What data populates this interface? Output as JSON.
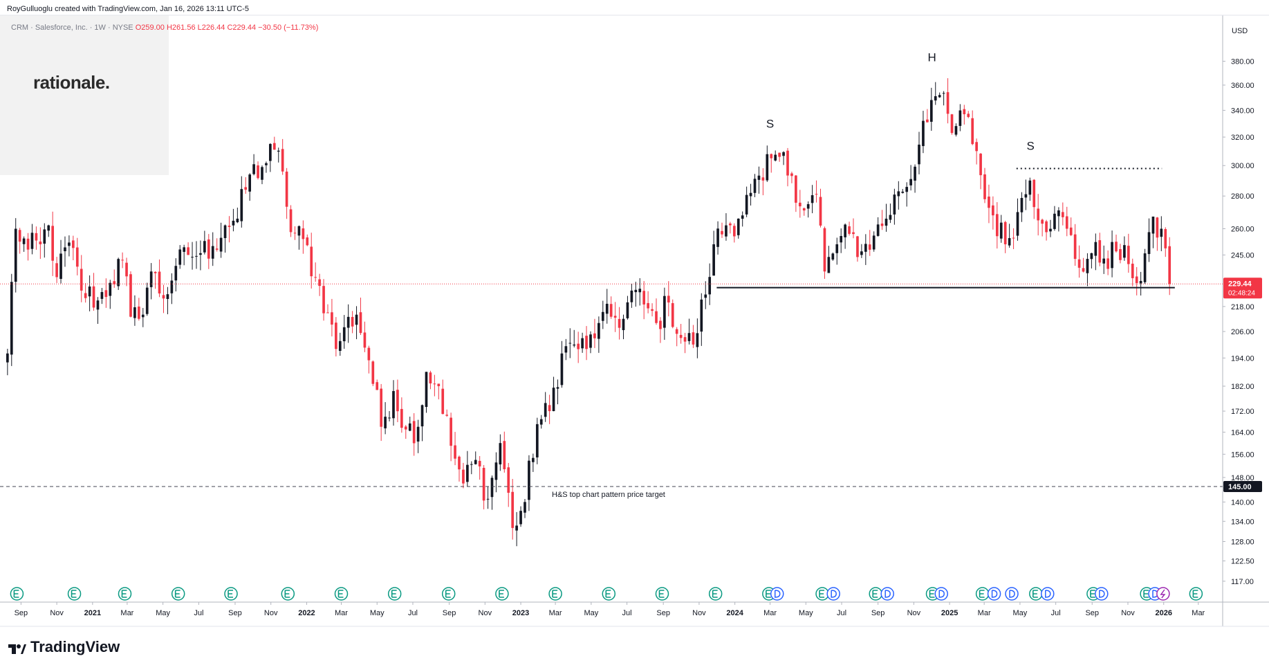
{
  "header": {
    "created_text": "RoyGulluoglu created with TradingView.com, Jan 16, 2026 13:11 UTC-5"
  },
  "symbol_line": {
    "name": "CRM · Salesforce, Inc. · 1W · NYSE",
    "open": "O259.00",
    "high": "H261.56",
    "low": "L226.44",
    "close": "C229.44",
    "change": "−30.50 (−11.73%)"
  },
  "logo": {
    "text": "rationale."
  },
  "footer": {
    "brand": "TradingView"
  },
  "colors": {
    "up": "#131722",
    "down": "#f23645",
    "last_price": "#f23645",
    "grid": "#f0f3fa",
    "axis_text": "#131722"
  },
  "chart_data": {
    "type": "candlestick",
    "title": "CRM · Salesforce, Inc. · 1W · NYSE",
    "currency": "USD",
    "y_scale": "log",
    "ylim": [
      113,
      410
    ],
    "y_ticks": [
      117,
      122.5,
      128,
      134,
      140,
      148,
      156,
      164,
      172,
      182,
      194,
      206,
      218,
      245,
      260,
      280,
      300,
      320,
      340,
      360,
      380
    ],
    "x_ticks": [
      "Sep",
      "Nov",
      "2021",
      "Mar",
      "May",
      "Jul",
      "Sep",
      "Nov",
      "2022",
      "Mar",
      "May",
      "Jul",
      "Sep",
      "Nov",
      "2023",
      "Mar",
      "May",
      "Jul",
      "Sep",
      "Nov",
      "2024",
      "Mar",
      "May",
      "Jul",
      "Sep",
      "Nov",
      "2025",
      "Mar",
      "May",
      "Jul",
      "Sep",
      "Nov",
      "2026",
      "Mar"
    ],
    "x_tick_dates": [
      "2020-09-01",
      "2020-11-01",
      "2021-01-01",
      "2021-03-01",
      "2021-05-01",
      "2021-07-01",
      "2021-09-01",
      "2021-11-01",
      "2022-01-01",
      "2022-03-01",
      "2022-05-01",
      "2022-07-01",
      "2022-09-01",
      "2022-11-01",
      "2023-01-01",
      "2023-03-01",
      "2023-05-01",
      "2023-07-01",
      "2023-09-01",
      "2023-11-01",
      "2024-01-01",
      "2024-03-01",
      "2024-05-01",
      "2024-07-01",
      "2024-09-01",
      "2024-11-01",
      "2025-01-01",
      "2025-03-01",
      "2025-05-01",
      "2025-07-01",
      "2025-09-01",
      "2025-11-01",
      "2026-01-01",
      "2026-03-01"
    ],
    "x_range": [
      "2020-08-08",
      "2026-04-08"
    ],
    "last_price": {
      "value": 229.44,
      "label": "229.44",
      "countdown": "02:48:24"
    },
    "target_price": {
      "value": 145.0,
      "label": "145.00",
      "annotation": "H&S top chart pattern price target"
    },
    "neckline": {
      "value": 227.5,
      "from": "2023-12-01",
      "to": "2026-01-20"
    },
    "shoulder_line": {
      "value": 298,
      "from": "2025-04-25",
      "to": "2025-12-29"
    },
    "pattern_labels": [
      {
        "text": "S",
        "date": "2024-03-01",
        "value": 327
      },
      {
        "text": "H",
        "date": "2024-12-02",
        "value": 380
      },
      {
        "text": "S",
        "date": "2025-05-19",
        "value": 311
      }
    ],
    "anchor_closes": [
      [
        "2020-08-09",
        196
      ],
      [
        "2020-08-23",
        260
      ],
      [
        "2020-09-13",
        248
      ],
      [
        "2020-10-04",
        251
      ],
      [
        "2020-10-18",
        262
      ],
      [
        "2020-11-01",
        233
      ],
      [
        "2020-11-22",
        252
      ],
      [
        "2020-12-13",
        226
      ],
      [
        "2021-01-10",
        221
      ],
      [
        "2021-01-31",
        230
      ],
      [
        "2021-02-21",
        242
      ],
      [
        "2021-03-07",
        213
      ],
      [
        "2021-03-21",
        212
      ],
      [
        "2021-04-11",
        236
      ],
      [
        "2021-05-02",
        222
      ],
      [
        "2021-05-23",
        239
      ],
      [
        "2021-06-13",
        245
      ],
      [
        "2021-07-04",
        246
      ],
      [
        "2021-07-25",
        250
      ],
      [
        "2021-08-15",
        262
      ],
      [
        "2021-09-05",
        266
      ],
      [
        "2021-09-26",
        294
      ],
      [
        "2021-10-17",
        299
      ],
      [
        "2021-11-07",
        311
      ],
      [
        "2021-11-21",
        296
      ],
      [
        "2021-12-05",
        258
      ],
      [
        "2021-12-26",
        254
      ],
      [
        "2022-01-16",
        233
      ],
      [
        "2022-02-06",
        215
      ],
      [
        "2022-02-20",
        198
      ],
      [
        "2022-03-06",
        208
      ],
      [
        "2022-03-27",
        214
      ],
      [
        "2022-04-17",
        193
      ],
      [
        "2022-05-08",
        166
      ],
      [
        "2022-05-29",
        180
      ],
      [
        "2022-06-19",
        165
      ],
      [
        "2022-07-10",
        166
      ],
      [
        "2022-07-24",
        188
      ],
      [
        "2022-08-14",
        182
      ],
      [
        "2022-09-04",
        159
      ],
      [
        "2022-09-25",
        146
      ],
      [
        "2022-10-16",
        154
      ],
      [
        "2022-11-06",
        141
      ],
      [
        "2022-11-27",
        160
      ],
      [
        "2022-12-18",
        132
      ],
      [
        "2023-01-08",
        140
      ],
      [
        "2023-01-29",
        167
      ],
      [
        "2023-02-19",
        172
      ],
      [
        "2023-03-12",
        196
      ],
      [
        "2023-04-02",
        200
      ],
      [
        "2023-04-23",
        198
      ],
      [
        "2023-05-14",
        210
      ],
      [
        "2023-06-04",
        213
      ],
      [
        "2023-06-25",
        212
      ],
      [
        "2023-07-09",
        226
      ],
      [
        "2023-07-30",
        219
      ],
      [
        "2023-08-20",
        210
      ],
      [
        "2023-09-10",
        220
      ],
      [
        "2023-10-01",
        203
      ],
      [
        "2023-10-22",
        200
      ],
      [
        "2023-11-12",
        224
      ],
      [
        "2023-11-26",
        251
      ],
      [
        "2023-12-17",
        262
      ],
      [
        "2024-01-07",
        266
      ],
      [
        "2024-01-28",
        282
      ],
      [
        "2024-02-18",
        290
      ],
      [
        "2024-03-03",
        305
      ],
      [
        "2024-03-17",
        306
      ],
      [
        "2024-04-07",
        293
      ],
      [
        "2024-04-28",
        271
      ],
      [
        "2024-05-19",
        281
      ],
      [
        "2024-06-02",
        236
      ],
      [
        "2024-06-23",
        251
      ],
      [
        "2024-07-14",
        257
      ],
      [
        "2024-08-04",
        247
      ],
      [
        "2024-08-25",
        256
      ],
      [
        "2024-09-15",
        266
      ],
      [
        "2024-10-06",
        283
      ],
      [
        "2024-10-27",
        291
      ],
      [
        "2024-11-17",
        332
      ],
      [
        "2024-12-01",
        348
      ],
      [
        "2024-12-15",
        352
      ],
      [
        "2025-01-05",
        323
      ],
      [
        "2025-01-26",
        337
      ],
      [
        "2025-02-16",
        310
      ],
      [
        "2025-03-02",
        278
      ],
      [
        "2025-03-16",
        268
      ],
      [
        "2025-04-06",
        251
      ],
      [
        "2025-04-27",
        270
      ],
      [
        "2025-05-18",
        290
      ],
      [
        "2025-06-08",
        263
      ],
      [
        "2025-06-29",
        269
      ],
      [
        "2025-07-20",
        260
      ],
      [
        "2025-08-10",
        238
      ],
      [
        "2025-08-31",
        246
      ],
      [
        "2025-09-21",
        243
      ],
      [
        "2025-10-12",
        247
      ],
      [
        "2025-11-02",
        240
      ],
      [
        "2025-11-23",
        231
      ],
      [
        "2025-12-07",
        258
      ],
      [
        "2025-12-28",
        260
      ],
      [
        "2026-01-11",
        229.44
      ]
    ],
    "earnings_markers": [
      "2020-08-25",
      "2020-12-01",
      "2021-02-25",
      "2021-05-27",
      "2021-08-25",
      "2021-11-30",
      "2022-03-01",
      "2022-05-31",
      "2022-08-31",
      "2022-11-30",
      "2023-03-01",
      "2023-05-31",
      "2023-08-30",
      "2023-11-29",
      "2024-02-28",
      "2024-05-29",
      "2024-08-28",
      "2024-12-03",
      "2025-02-26",
      "2025-05-28",
      "2025-09-03",
      "2025-12-03",
      "2026-02-25"
    ],
    "dividend_markers": [
      "2024-03-13",
      "2024-06-17",
      "2024-09-17",
      "2024-12-18",
      "2025-03-18",
      "2025-04-17",
      "2025-06-17",
      "2025-09-17",
      "2025-12-17"
    ],
    "split_markers": [
      "2025-12-31"
    ]
  }
}
